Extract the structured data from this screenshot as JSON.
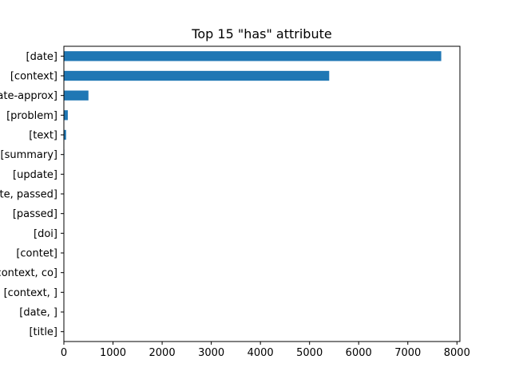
{
  "chart_data": {
    "type": "bar",
    "orientation": "horizontal",
    "title": "Top 15 \"has\" attribute",
    "xlabel": "",
    "ylabel": "",
    "categories": [
      "[date]",
      "[context]",
      "[date-approx]",
      "[problem]",
      "[text]",
      "[summary]",
      "[update]",
      "[date, passed]",
      "[passed]",
      "[doi]",
      "[contet]",
      "[context, co]",
      "[context, ]",
      "[date, ]",
      "[title]"
    ],
    "values": [
      7680,
      5400,
      500,
      80,
      45,
      10,
      8,
      6,
      5,
      4,
      3,
      3,
      2,
      2,
      2
    ],
    "xlim": [
      0,
      8060
    ],
    "xticks": [
      0,
      1000,
      2000,
      3000,
      4000,
      5000,
      6000,
      7000,
      8000
    ],
    "grid": false,
    "legend": "none",
    "bar_color": "#1f77b4"
  }
}
